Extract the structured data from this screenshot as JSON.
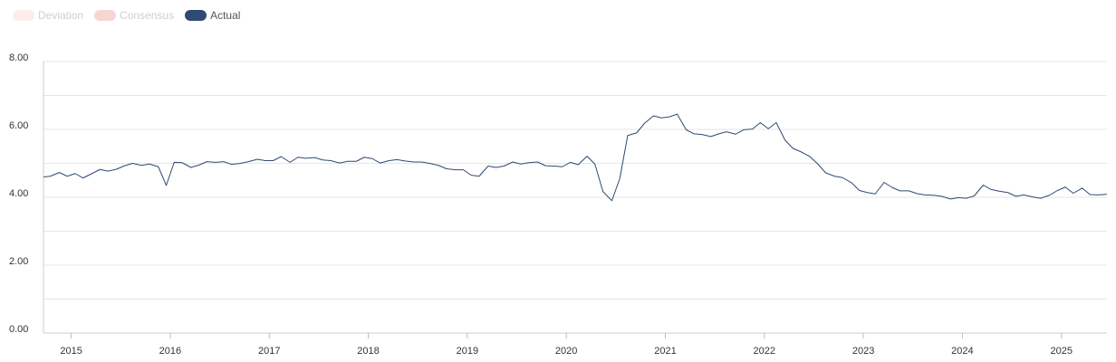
{
  "legend": {
    "items": [
      {
        "label": "Deviation",
        "color": "#fbeee9",
        "active": false
      },
      {
        "label": "Consensus",
        "color": "#f6d6d2",
        "active": false
      },
      {
        "label": "Actual",
        "color": "#2f4a73",
        "active": true
      }
    ]
  },
  "chart_data": {
    "type": "line",
    "title": "",
    "xlabel": "",
    "ylabel": "",
    "ylim": [
      0,
      8
    ],
    "xlim": [
      2014.72,
      2025.46
    ],
    "y_ticks": [
      "8.00",
      "6.00",
      "4.00",
      "2.00",
      "0.00"
    ],
    "y_tick_values": [
      8,
      6,
      4,
      2,
      0
    ],
    "x_ticks": [
      "2015",
      "2016",
      "2017",
      "2018",
      "2019",
      "2020",
      "2021",
      "2022",
      "2023",
      "2024",
      "2025"
    ],
    "x_tick_values": [
      2015,
      2016,
      2017,
      2018,
      2019,
      2020,
      2021,
      2022,
      2023,
      2024,
      2025
    ],
    "grid": true,
    "line_color": "#2f4a73",
    "series": [
      {
        "name": "Actual",
        "x": [
          2014.72,
          2014.79,
          2014.88,
          2014.96,
          2015.04,
          2015.12,
          2015.21,
          2015.29,
          2015.37,
          2015.46,
          2015.54,
          2015.62,
          2015.71,
          2015.79,
          2015.88,
          2015.96,
          2016.04,
          2016.12,
          2016.21,
          2016.29,
          2016.37,
          2016.46,
          2016.54,
          2016.62,
          2016.71,
          2016.79,
          2016.88,
          2016.96,
          2017.04,
          2017.12,
          2017.21,
          2017.29,
          2017.37,
          2017.46,
          2017.54,
          2017.62,
          2017.71,
          2017.79,
          2017.88,
          2017.96,
          2018.04,
          2018.12,
          2018.21,
          2018.29,
          2018.37,
          2018.46,
          2018.54,
          2018.62,
          2018.71,
          2018.79,
          2018.88,
          2018.96,
          2019.04,
          2019.12,
          2019.21,
          2019.29,
          2019.37,
          2019.46,
          2019.54,
          2019.62,
          2019.71,
          2019.79,
          2019.88,
          2019.96,
          2020.04,
          2020.12,
          2020.21,
          2020.29,
          2020.37,
          2020.46,
          2020.54,
          2020.62,
          2020.71,
          2020.79,
          2020.88,
          2020.96,
          2021.04,
          2021.12,
          2021.21,
          2021.29,
          2021.37,
          2021.46,
          2021.54,
          2021.62,
          2021.71,
          2021.79,
          2021.88,
          2021.96,
          2022.04,
          2022.12,
          2022.21,
          2022.29,
          2022.37,
          2022.46,
          2022.54,
          2022.62,
          2022.71,
          2022.79,
          2022.88,
          2022.96,
          2023.04,
          2023.12,
          2023.21,
          2023.29,
          2023.37,
          2023.46,
          2023.54,
          2023.62,
          2023.71,
          2023.79,
          2023.88,
          2023.96,
          2024.04,
          2024.12,
          2024.21,
          2024.29,
          2024.37,
          2024.46,
          2024.54,
          2024.62,
          2024.71,
          2024.79,
          2024.88,
          2024.96,
          2025.04,
          2025.12,
          2025.21,
          2025.29,
          2025.37,
          2025.46
        ],
        "values": [
          4.6,
          4.62,
          4.73,
          4.62,
          4.7,
          4.57,
          4.7,
          4.82,
          4.77,
          4.83,
          4.93,
          5.0,
          4.94,
          4.98,
          4.9,
          4.35,
          5.03,
          5.02,
          4.88,
          4.95,
          5.05,
          5.03,
          5.05,
          4.97,
          5.0,
          5.05,
          5.12,
          5.08,
          5.08,
          5.2,
          5.03,
          5.18,
          5.15,
          5.17,
          5.1,
          5.08,
          5.01,
          5.06,
          5.06,
          5.18,
          5.14,
          5.01,
          5.08,
          5.11,
          5.07,
          5.04,
          5.04,
          5.0,
          4.94,
          4.84,
          4.81,
          4.81,
          4.65,
          4.62,
          4.92,
          4.88,
          4.92,
          5.04,
          4.98,
          5.02,
          5.04,
          4.93,
          4.92,
          4.9,
          5.03,
          4.96,
          5.21,
          4.97,
          4.17,
          3.9,
          4.55,
          5.82,
          5.9,
          6.18,
          6.4,
          6.34,
          6.37,
          6.45,
          5.99,
          5.87,
          5.85,
          5.79,
          5.87,
          5.93,
          5.86,
          5.99,
          6.01,
          6.2,
          6.02,
          6.2,
          5.68,
          5.44,
          5.34,
          5.2,
          4.98,
          4.72,
          4.62,
          4.58,
          4.43,
          4.2,
          4.14,
          4.1,
          4.44,
          4.29,
          4.19,
          4.19,
          4.11,
          4.07,
          4.06,
          4.03,
          3.95,
          3.99,
          3.97,
          4.04,
          4.36,
          4.23,
          4.18,
          4.14,
          4.03,
          4.07,
          4.01,
          3.97,
          4.06,
          4.2,
          4.3,
          4.12,
          4.27,
          4.08,
          4.07,
          4.09
        ]
      }
    ]
  }
}
